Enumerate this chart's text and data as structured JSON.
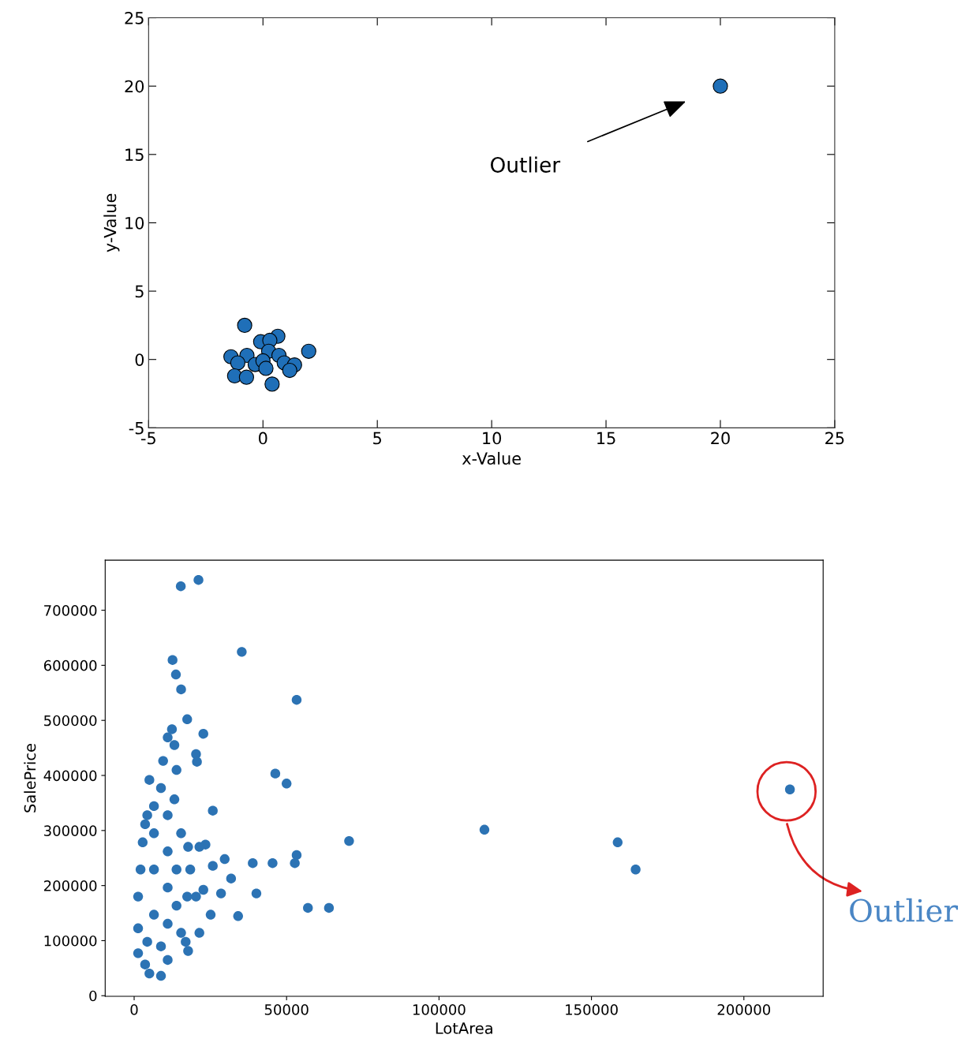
{
  "chart_data": [
    {
      "type": "scatter",
      "xlabel": "x-Value",
      "ylabel": "y-Value",
      "xlim": [
        -5,
        25
      ],
      "ylim": [
        -5,
        25
      ],
      "xticks": [
        -5,
        0,
        5,
        10,
        15,
        20,
        25
      ],
      "yticks": [
        -5,
        0,
        5,
        10,
        15,
        20,
        25
      ],
      "grid": false,
      "marker": "circle",
      "series": [
        {
          "color": "#1f6fb8",
          "x": [
            20,
            -0.8,
            0.65,
            -0.1,
            0.3,
            0.25,
            2.0,
            -1.4,
            -0.7,
            0.7,
            -1.1,
            -0.34,
            0,
            0.93,
            1.38,
            1.17,
            -1.24,
            -0.72,
            0.4,
            0.13
          ],
          "values": [
            20,
            2.5,
            1.7,
            1.3,
            1.4,
            0.6,
            0.6,
            0.2,
            0.3,
            0.3,
            -0.25,
            -0.37,
            -0.1,
            -0.25,
            -0.4,
            -0.8,
            -1.2,
            -1.3,
            -1.8,
            -0.65
          ]
        }
      ],
      "annotations": [
        "Outlier"
      ]
    },
    {
      "type": "scatter",
      "xlabel": "LotArea",
      "ylabel": "SalePrice",
      "xlim": [
        -9500,
        226000
      ],
      "ylim": [
        -1100,
        791000
      ],
      "xticks": [
        0,
        50000,
        100000,
        150000,
        200000
      ],
      "yticks": [
        0,
        100000,
        200000,
        300000,
        400000,
        500000,
        600000,
        700000
      ],
      "grid": false,
      "marker": "circle",
      "series": [
        {
          "color": "#2c73b4",
          "x": [
            15300,
            21100,
            35300,
            12600,
            13700,
            15400,
            53300,
            17400,
            22700,
            20300,
            20600,
            46300,
            50000,
            215100,
            25800,
            114900,
            70500,
            158600,
            164500,
            38900,
            45400,
            52700,
            53300,
            57000,
            63900,
            40100,
            34100,
            28500,
            31800,
            29700,
            25800,
            23400,
            21400,
            25100,
            21400,
            17700,
            16900,
            5000,
            4300,
            11000,
            12400,
            13200,
            5000,
            8800,
            3600,
            1300,
            11000,
            1300,
            1300,
            2100,
            2800,
            3600,
            6500,
            8800,
            6500,
            6500,
            6500,
            11000,
            11000,
            11000,
            11000,
            13900,
            13900,
            15400,
            17400,
            18400,
            17700,
            13900,
            9500,
            13200,
            4300,
            8800,
            15400,
            20300,
            22700
          ],
          "values": [
            743500,
            755000,
            624400,
            609600,
            583300,
            556200,
            537300,
            502000,
            475700,
            438700,
            424800,
            403400,
            385300,
            374600,
            336000,
            301500,
            281000,
            278500,
            229200,
            240700,
            240700,
            240700,
            255500,
            159400,
            159400,
            185700,
            144600,
            185700,
            212800,
            248100,
            235800,
            274400,
            270300,
            147100,
            114200,
            81300,
            97800,
            391900,
            327800,
            469100,
            483900,
            455200,
            40300,
            36100,
            56700,
            77200,
            64900,
            122400,
            180000,
            229200,
            278500,
            311400,
            344300,
            377100,
            147100,
            229200,
            295000,
            130600,
            196400,
            262100,
            327800,
            163500,
            229200,
            295000,
            180000,
            229200,
            270300,
            410000,
            426400,
            356600,
            97800,
            89600,
            114200,
            180000,
            192300
          ]
        }
      ],
      "annotations": [
        "Outlier"
      ]
    }
  ]
}
